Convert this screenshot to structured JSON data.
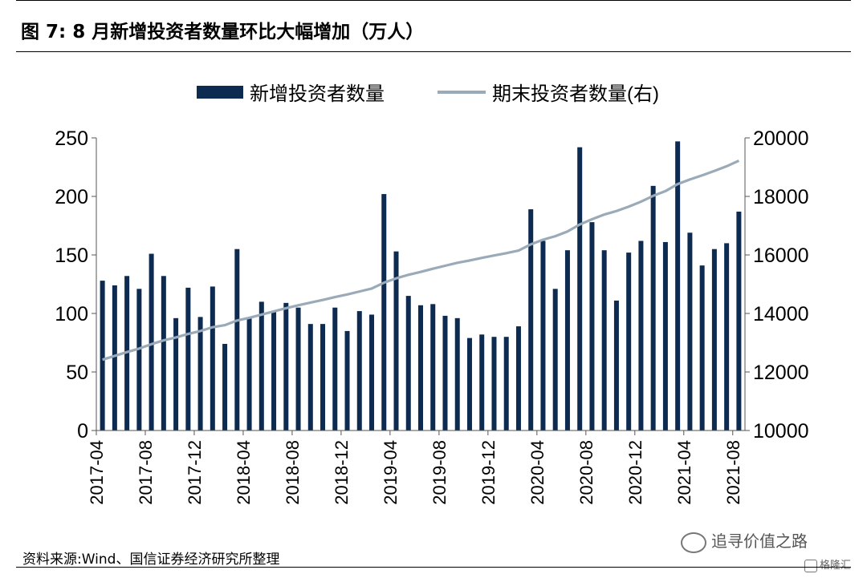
{
  "header": {
    "title": "图 7:  8 月新增投资者数量环比大幅增加（万人）"
  },
  "footer": {
    "source": "资料来源:Wind、国信证券经济研究所整理",
    "watermark": "追寻价值之路",
    "badge": "格隆汇"
  },
  "chart_data": {
    "type": "bar",
    "legend_position": "top-center",
    "grid": false,
    "colors": {
      "bar": "#0d2a50",
      "line": "#9aaab8"
    },
    "x": [
      "2017-04",
      "2017-05",
      "2017-06",
      "2017-07",
      "2017-08",
      "2017-09",
      "2017-10",
      "2017-11",
      "2017-12",
      "2018-01",
      "2018-02",
      "2018-03",
      "2018-04",
      "2018-05",
      "2018-06",
      "2018-07",
      "2018-08",
      "2018-09",
      "2018-10",
      "2018-11",
      "2018-12",
      "2019-01",
      "2019-02",
      "2019-03",
      "2019-04",
      "2019-05",
      "2019-06",
      "2019-07",
      "2019-08",
      "2019-09",
      "2019-10",
      "2019-11",
      "2019-12",
      "2020-01",
      "2020-02",
      "2020-03",
      "2020-04",
      "2020-05",
      "2020-06",
      "2020-07",
      "2020-08",
      "2020-09",
      "2020-10",
      "2020-11",
      "2020-12",
      "2021-01",
      "2021-02",
      "2021-03",
      "2021-04",
      "2021-05",
      "2021-06",
      "2021-07",
      "2021-08"
    ],
    "x_tick_labels": [
      "2017-04",
      "2017-08",
      "2017-12",
      "2018-04",
      "2018-08",
      "2018-12",
      "2019-04",
      "2019-08",
      "2019-12",
      "2020-04",
      "2020-08",
      "2020-12",
      "2021-04",
      "2021-08"
    ],
    "y_left": {
      "ticks": [
        0,
        50,
        100,
        150,
        200,
        250
      ],
      "ylim": [
        0,
        250
      ]
    },
    "y_right": {
      "ticks": [
        10000,
        12000,
        14000,
        16000,
        18000,
        20000
      ],
      "ylim": [
        10000,
        20000
      ]
    },
    "series": [
      {
        "name": "新增投资者数量",
        "type": "bar",
        "axis": "left",
        "values": [
          128,
          124,
          132,
          121,
          151,
          132,
          96,
          122,
          97,
          123,
          74,
          155,
          96,
          110,
          102,
          109,
          105,
          91,
          91,
          105,
          85,
          102,
          99,
          202,
          153,
          115,
          107,
          108,
          98,
          96,
          79,
          82,
          80,
          80,
          89,
          189,
          162,
          121,
          154,
          242,
          178,
          154,
          111,
          152,
          162,
          209,
          161,
          247,
          169,
          141,
          155,
          160,
          187
        ]
      },
      {
        "name": "期末投资者数量(右)",
        "type": "line",
        "axis": "right",
        "values": [
          12420,
          12550,
          12680,
          12800,
          12950,
          13080,
          13180,
          13300,
          13400,
          13530,
          13600,
          13760,
          13850,
          13960,
          14070,
          14180,
          14280,
          14370,
          14460,
          14560,
          14650,
          14750,
          14850,
          15050,
          15200,
          15320,
          15420,
          15530,
          15630,
          15730,
          15810,
          15900,
          15980,
          16060,
          16150,
          16360,
          16520,
          16640,
          16800,
          17040,
          17220,
          17380,
          17500,
          17650,
          17820,
          18020,
          18180,
          18420,
          18580,
          18720,
          18870,
          19030,
          19220
        ]
      }
    ]
  }
}
